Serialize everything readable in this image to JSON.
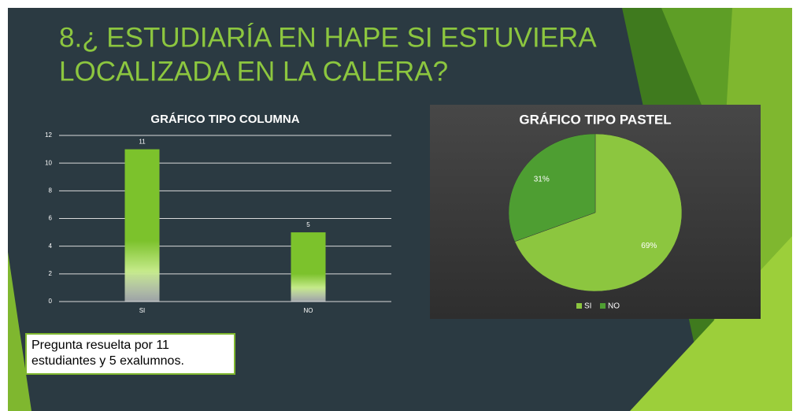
{
  "title": [
    "8.¿ ESTUDIARÍA EN HAPE SI ESTUVIERA",
    "LOCALIZADA EN LA CALERA?"
  ],
  "note": [
    "Pregunta resuelta por 11",
    "estudiantes y 5 exalumnos."
  ],
  "chart_data": [
    {
      "type": "bar",
      "title": "GRÁFICO TIPO COLUMNA",
      "categories": [
        "SI",
        "NO"
      ],
      "values": [
        11,
        5
      ],
      "color": "#7cc22c",
      "ylim": [
        0,
        12
      ],
      "yticks": [
        0,
        2,
        4,
        6,
        8,
        10,
        12
      ],
      "grid": true
    },
    {
      "type": "pie",
      "title": "GRÁFICO TIPO PASTEL",
      "categories": [
        "SI",
        "NO"
      ],
      "values": [
        69,
        31
      ],
      "value_labels": [
        "69%",
        "31%"
      ],
      "colors": [
        "#8cc63f",
        "#4e9e32"
      ],
      "legend": "bottom"
    }
  ]
}
